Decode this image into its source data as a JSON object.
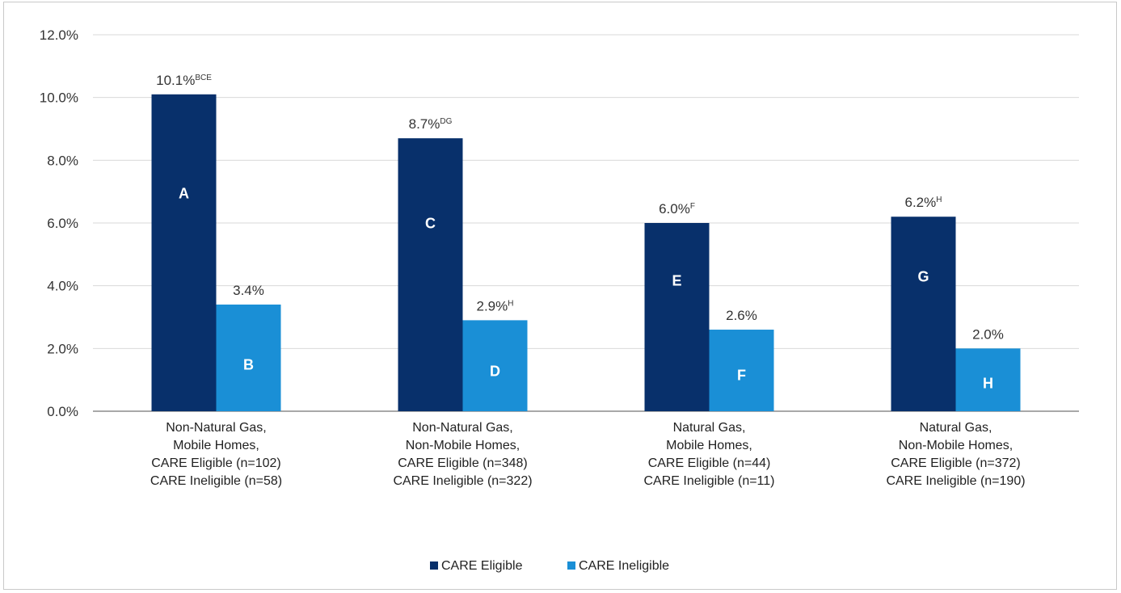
{
  "chart_data": {
    "type": "bar",
    "categories": [
      [
        "Non-Natural Gas,",
        "Mobile Homes,",
        "CARE Eligible (n=102)",
        "CARE Ineligible (n=58)"
      ],
      [
        "Non-Natural Gas,",
        "Non-Mobile Homes,",
        "CARE Eligible (n=348)",
        "CARE Ineligible (n=322)"
      ],
      [
        "Natural Gas,",
        "Mobile Homes,",
        "CARE Eligible (n=44)",
        "CARE Ineligible (n=11)"
      ],
      [
        "Natural Gas,",
        "Non-Mobile Homes,",
        "CARE Eligible (n=372)",
        "CARE Ineligible (n=190)"
      ]
    ],
    "series": [
      {
        "name": "CARE Eligible",
        "color": "#08306b",
        "values": [
          10.1,
          8.7,
          6.0,
          6.2
        ],
        "value_labels": [
          "10.1%",
          "8.7%",
          "6.0%",
          "6.2%"
        ],
        "superscripts": [
          "BCE",
          "DG",
          "F",
          "H"
        ],
        "bar_letters": [
          "A",
          "C",
          "E",
          "G"
        ]
      },
      {
        "name": "CARE Ineligible",
        "color": "#1a8fd6",
        "values": [
          3.4,
          2.9,
          2.6,
          2.0
        ],
        "value_labels": [
          "3.4%",
          "2.9%",
          "2.6%",
          "2.0%"
        ],
        "superscripts": [
          "",
          "H",
          "",
          ""
        ],
        "bar_letters": [
          "B",
          "D",
          "F",
          "H"
        ]
      }
    ],
    "ylim": [
      0,
      12
    ],
    "yticks": [
      0,
      2,
      4,
      6,
      8,
      10,
      12
    ],
    "ytick_labels": [
      "0.0%",
      "2.0%",
      "4.0%",
      "6.0%",
      "8.0%",
      "10.0%",
      "12.0%"
    ],
    "grid": true,
    "legend": "bottom",
    "title": "",
    "xlabel": "",
    "ylabel": ""
  }
}
